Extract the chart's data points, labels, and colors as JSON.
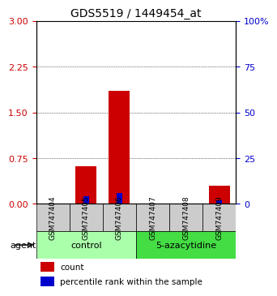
{
  "title": "GDS5519 / 1449454_at",
  "samples": [
    "GSM747404",
    "GSM747405",
    "GSM747406",
    "GSM747407",
    "GSM747408",
    "GSM747409"
  ],
  "count_values": [
    0.0,
    0.62,
    1.85,
    0.0,
    0.0,
    0.3
  ],
  "percentile_values": [
    0.0,
    0.04,
    0.06,
    0.0,
    0.0,
    0.02
  ],
  "left_ylim": [
    0,
    3
  ],
  "right_ylim": [
    0,
    100
  ],
  "left_yticks": [
    0,
    0.75,
    1.5,
    2.25,
    3
  ],
  "right_yticks": [
    0,
    25,
    50,
    75,
    100
  ],
  "right_yticklabels": [
    "0",
    "25",
    "50",
    "75",
    "100%"
  ],
  "left_ytick_color": "#cc0000",
  "right_ytick_color": "#0000cc",
  "grid_yticks": [
    0.75,
    1.5,
    2.25
  ],
  "bar_width": 0.35,
  "count_color": "#cc0000",
  "percentile_color": "#0000cc",
  "agent_groups": [
    {
      "label": "control",
      "indices": [
        0,
        1,
        2
      ],
      "color": "#aaffaa"
    },
    {
      "label": "5-azacytidine",
      "indices": [
        3,
        4,
        5
      ],
      "color": "#44dd44"
    }
  ],
  "agent_label": "agent",
  "legend_count_label": "count",
  "legend_percentile_label": "percentile rank within the sample",
  "xlabel_color": "#000000",
  "sample_box_color": "#cccccc",
  "background_color": "#ffffff",
  "percentile_scale": 3.0
}
